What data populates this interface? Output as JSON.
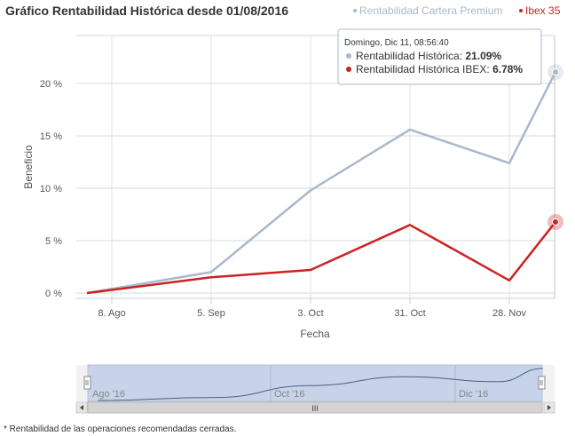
{
  "chart_data": {
    "type": "line",
    "title": "Gráfico Rentabilidad Histórica desde 01/08/2016",
    "xlabel": "Fecha",
    "ylabel": "Beneficio",
    "x_ticks": [
      "8. Ago",
      "5. Sep",
      "3. Oct",
      "31. Oct",
      "28. Nov"
    ],
    "y_ticks": [
      "0 %",
      "5 %",
      "10 %",
      "15 %",
      "20 %"
    ],
    "ylim": [
      0,
      25
    ],
    "x": [
      "2016-08-01",
      "2016-09-05",
      "2016-10-03",
      "2016-10-31",
      "2016-11-28",
      "2016-12-11"
    ],
    "legend_position": "top-right",
    "series": [
      {
        "name": "Rentabilidad Cartera Premium",
        "color": "#a9b8cb",
        "values": [
          0,
          2.0,
          9.8,
          15.6,
          12.4,
          21.09
        ]
      },
      {
        "name": "Ibex 35",
        "color": "#cc2222",
        "values": [
          0,
          1.5,
          2.2,
          6.5,
          1.2,
          6.78
        ]
      }
    ],
    "tooltip": {
      "header": "Domingo, Dic 11, 08:56:40",
      "rows": [
        {
          "label": "Rentabilidad Histórica: ",
          "value": "21.09%",
          "color": "#a9b8cb"
        },
        {
          "label": "Rentabilidad Histórica IBEX: ",
          "value": "6.78%",
          "color": "#cc2222"
        }
      ]
    },
    "navigator": {
      "labels": [
        "Ago '16",
        "Oct '16",
        "Dic '16"
      ],
      "scroll_label": "III"
    }
  },
  "footnote": "* Rentabilidad de las operaciones recomendadas cerradas."
}
